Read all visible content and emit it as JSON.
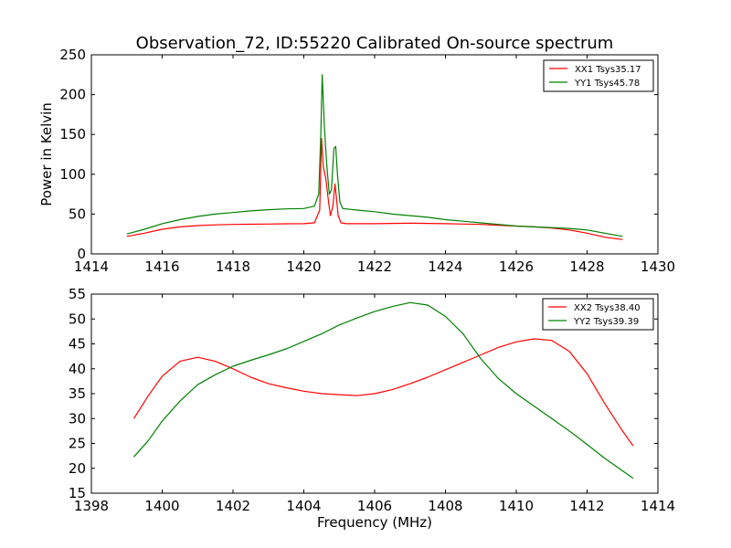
{
  "figure": {
    "title": "Observation_72, ID:55220 Calibrated On-source spectrum"
  },
  "chart_data": [
    {
      "type": "line",
      "title": "Observation_72, ID:55220 Calibrated On-source spectrum",
      "xlabel": "",
      "ylabel": "Power in Kelvin",
      "xlim": [
        1414,
        1430
      ],
      "ylim": [
        0,
        250
      ],
      "xticks": [
        "1414",
        "1416",
        "1418",
        "1420",
        "1422",
        "1424",
        "1426",
        "1428",
        "1430"
      ],
      "yticks": [
        "0",
        "50",
        "100",
        "150",
        "200",
        "250"
      ],
      "grid": false,
      "legend": "top-right",
      "series": [
        {
          "name": "XX1 Tsys35.17",
          "color": "#ff0000",
          "x": [
            1415.0,
            1415.5,
            1416.0,
            1416.5,
            1417.0,
            1417.5,
            1418.0,
            1418.5,
            1419.0,
            1419.5,
            1420.0,
            1420.3,
            1420.45,
            1420.5,
            1420.55,
            1420.62,
            1420.7,
            1420.75,
            1420.82,
            1420.88,
            1420.92,
            1420.97,
            1421.05,
            1421.2,
            1421.5,
            1422.0,
            1422.5,
            1423.0,
            1423.5,
            1424.0,
            1424.5,
            1425.0,
            1425.5,
            1426.0,
            1426.5,
            1427.0,
            1427.5,
            1428.0,
            1428.5,
            1429.0
          ],
          "y": [
            22,
            26,
            31,
            34,
            35.5,
            36.5,
            37,
            37.3,
            37.5,
            37.8,
            38,
            39,
            55,
            145,
            110,
            95,
            65,
            48,
            60,
            88,
            70,
            48,
            39,
            38,
            38,
            38,
            38.3,
            38.5,
            38.3,
            38,
            37.5,
            37,
            36,
            35,
            34,
            32.5,
            30,
            26,
            21,
            18
          ]
        },
        {
          "name": "YY1 Tsys45.78",
          "color": "#008000",
          "x": [
            1415.0,
            1415.5,
            1416.0,
            1416.5,
            1417.0,
            1417.5,
            1418.0,
            1418.5,
            1419.0,
            1419.5,
            1420.0,
            1420.3,
            1420.42,
            1420.48,
            1420.52,
            1420.58,
            1420.65,
            1420.72,
            1420.78,
            1420.85,
            1420.9,
            1420.95,
            1421.02,
            1421.1,
            1421.3,
            1421.5,
            1422.0,
            1422.5,
            1423.0,
            1423.5,
            1424.0,
            1424.5,
            1425.0,
            1425.5,
            1426.0,
            1426.5,
            1427.0,
            1427.5,
            1428.0,
            1428.5,
            1429.0
          ],
          "y": [
            25,
            31,
            38,
            43,
            47,
            50,
            52,
            54,
            55.5,
            56.5,
            57,
            60,
            75,
            150,
            225,
            160,
            110,
            75,
            80,
            132,
            135,
            100,
            65,
            57,
            56,
            55,
            53,
            50,
            48,
            46,
            43,
            41,
            39,
            37,
            35,
            34,
            33,
            32,
            30,
            26,
            22
          ]
        }
      ]
    },
    {
      "type": "line",
      "title": "",
      "xlabel": "Frequency (MHz)",
      "ylabel": "",
      "xlim": [
        1398,
        1414
      ],
      "ylim": [
        15,
        55
      ],
      "xticks": [
        "1398",
        "1400",
        "1402",
        "1404",
        "1406",
        "1408",
        "1410",
        "1412",
        "1414"
      ],
      "yticks": [
        "15",
        "20",
        "25",
        "30",
        "35",
        "40",
        "45",
        "50",
        "55"
      ],
      "grid": false,
      "legend": "top-right",
      "series": [
        {
          "name": "XX2 Tsys38.40",
          "color": "#ff0000",
          "x": [
            1399.2,
            1399.6,
            1400.0,
            1400.5,
            1401.0,
            1401.5,
            1402.0,
            1402.5,
            1403.0,
            1403.5,
            1404.0,
            1404.5,
            1405.0,
            1405.5,
            1406.0,
            1406.5,
            1407.0,
            1407.5,
            1408.0,
            1408.5,
            1409.0,
            1409.5,
            1410.0,
            1410.5,
            1411.0,
            1411.5,
            1412.0,
            1412.5,
            1413.0,
            1413.3
          ],
          "y": [
            30,
            34.5,
            38.5,
            41.5,
            42.3,
            41.5,
            40,
            38.3,
            37,
            36.2,
            35.5,
            35,
            34.8,
            34.6,
            35,
            35.8,
            37,
            38.3,
            39.8,
            41.3,
            42.8,
            44.3,
            45.4,
            46,
            45.7,
            43.5,
            39,
            33,
            27.5,
            24.5
          ]
        },
        {
          "name": "YY2 Tsys39.39",
          "color": "#008000",
          "x": [
            1399.2,
            1399.6,
            1400.0,
            1400.5,
            1401.0,
            1401.5,
            1402.0,
            1402.5,
            1403.0,
            1403.5,
            1404.0,
            1404.5,
            1405.0,
            1405.5,
            1406.0,
            1406.5,
            1407.0,
            1407.5,
            1408.0,
            1408.5,
            1409.0,
            1409.5,
            1410.0,
            1410.5,
            1411.0,
            1411.5,
            1412.0,
            1412.5,
            1413.0,
            1413.3
          ],
          "y": [
            22.3,
            25.5,
            29.5,
            33.5,
            36.8,
            38.8,
            40.5,
            41.7,
            42.8,
            44,
            45.5,
            47,
            48.8,
            50.2,
            51.5,
            52.5,
            53.3,
            52.8,
            50.5,
            47,
            42,
            38,
            35,
            32.5,
            30,
            27.5,
            24.8,
            22,
            19.5,
            18
          ]
        }
      ]
    }
  ]
}
